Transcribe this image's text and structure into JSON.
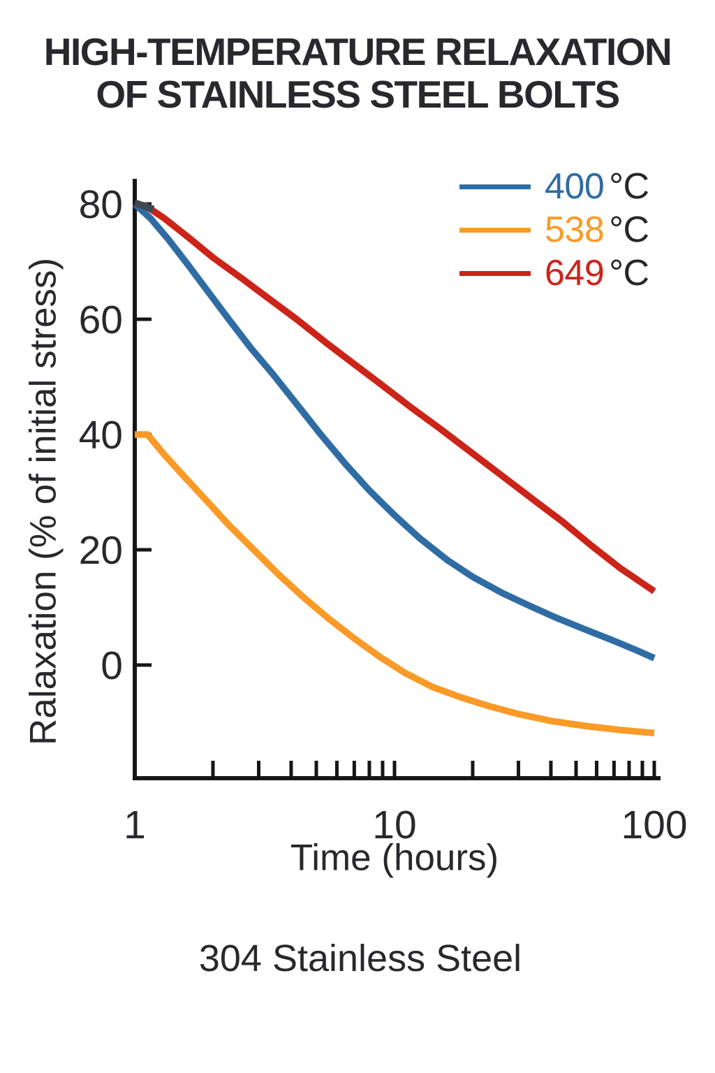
{
  "title_lines": [
    "HIGH-TEMPERATURE RELAXATION",
    "OF STAINLESS STEEL BOLTS"
  ],
  "caption": "304 Stainless Steel",
  "colors": {
    "text_dark": "#29282d",
    "axis": "#161616",
    "series_400c": "#2F6CA4",
    "series_538c": "#FB9A27",
    "series_649c": "#CC2418",
    "overlap": "#3C4A54"
  },
  "chart_data": {
    "type": "line",
    "title": "HIGH-TEMPERATURE RELAXATION OF STAINLESS STEEL BOLTS",
    "xlabel": "Time (hours)",
    "ylabel": "Ralaxation (% of initial stress)",
    "x_scale": "log",
    "xlim": [
      1,
      100
    ],
    "ylim": [
      -20,
      84
    ],
    "grid": false,
    "legend_position": "top-right",
    "y_ticks": [
      80,
      60,
      40,
      20,
      0
    ],
    "x_ticks_major": [
      1,
      10,
      100
    ],
    "x_ticks_minor": [
      2,
      3,
      4,
      5,
      6,
      7,
      8,
      9,
      10,
      20,
      30,
      40,
      50,
      60,
      70,
      80,
      90,
      100
    ],
    "series": [
      {
        "name": "400",
        "unit": "°C",
        "color": "#2F6CA4",
        "points": [
          [
            1,
            80
          ],
          [
            1.15,
            77.5
          ],
          [
            1.35,
            73.8
          ],
          [
            1.6,
            69.5
          ],
          [
            1.9,
            65
          ],
          [
            2.3,
            60
          ],
          [
            2.8,
            55
          ],
          [
            3.4,
            50.5
          ],
          [
            4.2,
            45.3
          ],
          [
            5.2,
            40
          ],
          [
            6.5,
            34.8
          ],
          [
            8,
            30.3
          ],
          [
            10,
            26
          ],
          [
            12.5,
            22
          ],
          [
            16,
            18.2
          ],
          [
            20,
            15.3
          ],
          [
            26,
            12.5
          ],
          [
            33,
            10.3
          ],
          [
            42,
            8.2
          ],
          [
            54,
            6.2
          ],
          [
            70,
            4.2
          ],
          [
            85,
            2.6
          ],
          [
            100,
            1.2
          ]
        ]
      },
      {
        "name": "538",
        "unit": "°C",
        "color": "#FB9A27",
        "points": [
          [
            1,
            40
          ],
          [
            1.12,
            40
          ],
          [
            1.3,
            36.5
          ],
          [
            1.55,
            32.7
          ],
          [
            1.9,
            28.4
          ],
          [
            2.3,
            24.3
          ],
          [
            2.9,
            19.8
          ],
          [
            3.6,
            15.6
          ],
          [
            4.5,
            11.6
          ],
          [
            5.6,
            8
          ],
          [
            7,
            4.6
          ],
          [
            8.8,
            1.4
          ],
          [
            11,
            -1.4
          ],
          [
            14,
            -3.8
          ],
          [
            18,
            -5.6
          ],
          [
            23,
            -7.1
          ],
          [
            30,
            -8.5
          ],
          [
            40,
            -9.7
          ],
          [
            55,
            -10.6
          ],
          [
            75,
            -11.3
          ],
          [
            100,
            -11.8
          ]
        ]
      },
      {
        "name": "649",
        "unit": "°C",
        "color": "#CC2418",
        "points": [
          [
            1,
            80
          ],
          [
            1.1,
            79.7
          ],
          [
            1.3,
            77.5
          ],
          [
            1.6,
            74.3
          ],
          [
            2,
            70.7
          ],
          [
            2.6,
            67
          ],
          [
            3.3,
            63.5
          ],
          [
            4.2,
            60
          ],
          [
            5.5,
            55.8
          ],
          [
            7,
            52.2
          ],
          [
            9,
            48.5
          ],
          [
            11.5,
            44.8
          ],
          [
            15,
            41
          ],
          [
            20,
            36.7
          ],
          [
            26,
            32.8
          ],
          [
            34,
            28.8
          ],
          [
            44,
            25
          ],
          [
            57,
            20.8
          ],
          [
            74,
            16.8
          ],
          [
            100,
            12.8
          ]
        ]
      }
    ],
    "overlap_marker": {
      "color": "#3C4A54",
      "points": [
        [
          1.0,
          80.2
        ],
        [
          1.18,
          79.1
        ]
      ]
    }
  }
}
